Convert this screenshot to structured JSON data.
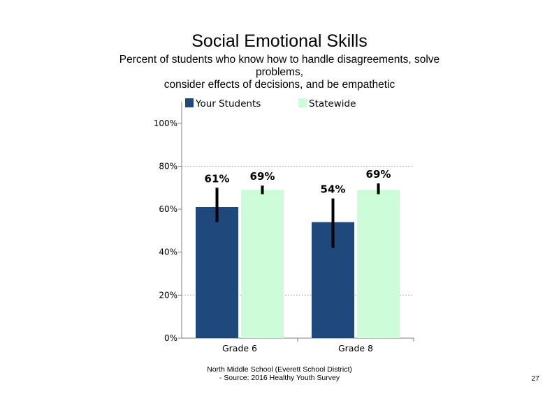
{
  "chart_data": {
    "type": "bar",
    "title": "Social Emotional Skills",
    "subtitle_lines": [
      "Percent of students who know how to handle disagreements, solve",
      "problems,",
      "consider effects of decisions, and be empathetic"
    ],
    "categories": [
      "Grade 6",
      "Grade 8"
    ],
    "series": [
      {
        "name": "Your Students",
        "values": [
          61,
          54
        ],
        "labels": [
          "61%",
          "54%"
        ],
        "error_low": [
          54,
          42
        ],
        "error_high": [
          70,
          65
        ],
        "color": "#1f497d"
      },
      {
        "name": "Statewide",
        "values": [
          69,
          69
        ],
        "labels": [
          "69%",
          "69%"
        ],
        "error_low": [
          67,
          67
        ],
        "error_high": [
          71,
          72
        ],
        "color": "#ccfcd8"
      }
    ],
    "ylim": [
      0,
      110
    ],
    "y_ticks": [
      0,
      20,
      40,
      60,
      80,
      100
    ],
    "y_tick_labels": [
      "0%",
      "20%",
      "40%",
      "60%",
      "80%",
      "100%"
    ],
    "gridlines": [
      20,
      80
    ],
    "legend_position": "top"
  },
  "footer": {
    "line1": "North Middle School (Everett School District)",
    "line2": "- Source: 2016 Healthy Youth Survey"
  },
  "page_number": "27"
}
